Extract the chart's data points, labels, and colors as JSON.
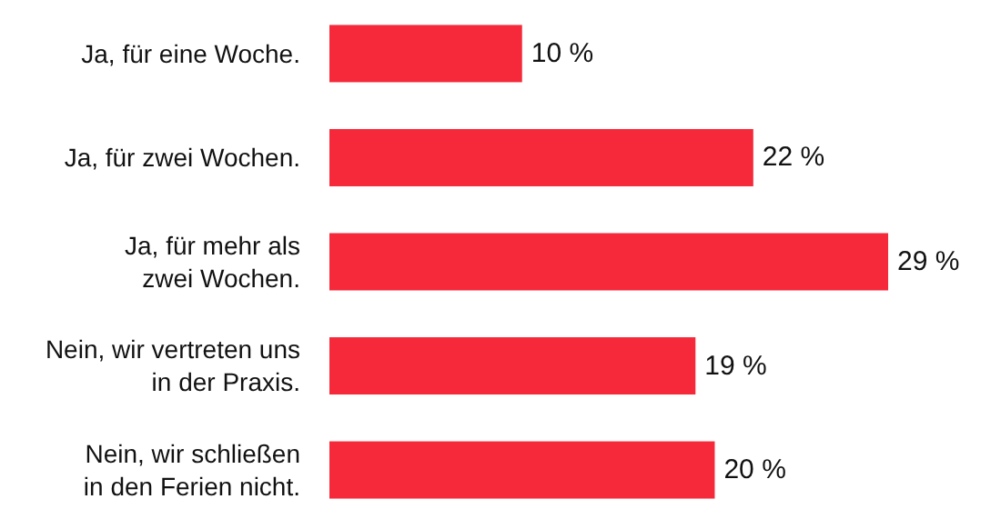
{
  "chart_data": {
    "type": "bar",
    "orientation": "horizontal",
    "categories": [
      "Ja, für eine Woche.",
      "Ja, für zwei Wochen.",
      "Ja, für mehr als\nzwei Wochen.",
      "Nein, wir vertreten uns\nin der Praxis.",
      "Nein, wir schließen\nin den Ferien nicht."
    ],
    "values": [
      10,
      22,
      29,
      19,
      20
    ],
    "value_labels": [
      "10 %",
      "22 %",
      "29 %",
      "19 %",
      "20 %"
    ],
    "color": "#f5293a"
  }
}
